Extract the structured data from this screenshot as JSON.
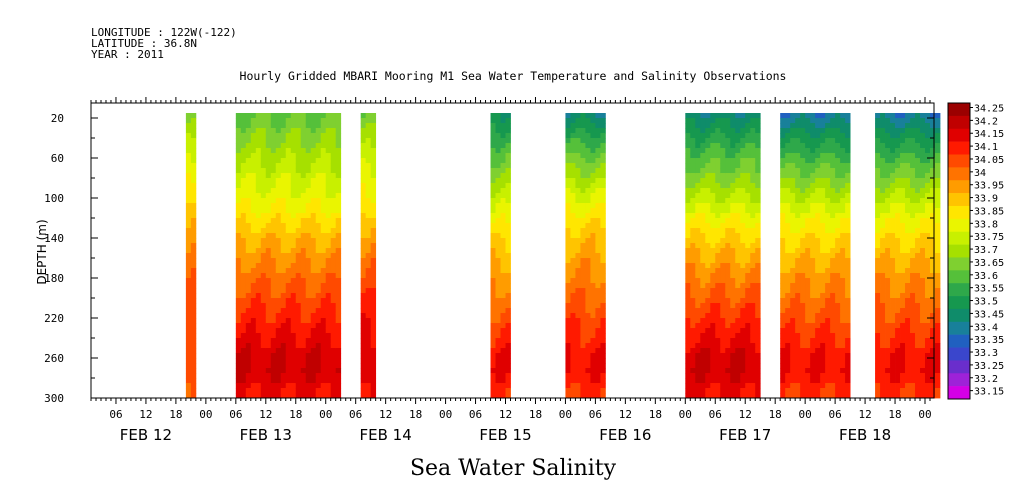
{
  "header": {
    "longitude": "LONGITUDE : 122W(-122)",
    "latitude": "LATITUDE : 36.8N",
    "year": "YEAR : 2011",
    "title": "Hourly Gridded MBARI Mooring M1 Sea Water Temperature and Salinity Observations"
  },
  "chart_data": {
    "type": "heatmap",
    "title": "Hourly Gridded MBARI Mooring M1 Sea Water Temperature and Salinity Observations",
    "xlabel": "",
    "ylabel": "DEPTH (m)",
    "footer_label": "Sea Water Salinity",
    "ylim": [
      300,
      0
    ],
    "y_ticks": [
      20,
      60,
      100,
      140,
      180,
      220,
      260,
      300
    ],
    "x_hour_ticks": [
      "06",
      "12",
      "18",
      "00",
      "06",
      "12",
      "18",
      "00",
      "06",
      "12",
      "18",
      "00",
      "06",
      "12",
      "18",
      "00",
      "06",
      "12",
      "18",
      "00",
      "06",
      "12",
      "18",
      "00",
      "06",
      "12",
      "18",
      "00",
      "06",
      "12",
      "18",
      "00"
    ],
    "x_day_labels": [
      "FEB 12",
      "FEB 13",
      "FEB 14",
      "FEB 15",
      "FEB 16",
      "FEB 17",
      "FEB 18"
    ],
    "colorbar_levels": [
      "34.25",
      "34.2",
      "34.15",
      "34.1",
      "34.05",
      "34",
      "33.95",
      "33.9",
      "33.85",
      "33.8",
      "33.75",
      "33.7",
      "33.65",
      "33.6",
      "33.55",
      "33.5",
      "33.45",
      "33.4",
      "33.35",
      "33.3",
      "33.25",
      "33.2",
      "33.15"
    ],
    "colorbar_colors": [
      "#9b0000",
      "#c00000",
      "#e00000",
      "#ff1a00",
      "#ff4a00",
      "#ff7300",
      "#ff9c00",
      "#ffc400",
      "#ffe600",
      "#eaf500",
      "#c8f000",
      "#a6e000",
      "#7fd030",
      "#55c03a",
      "#2ea84a",
      "#16984f",
      "#0f8c6a",
      "#18809a",
      "#2060c0",
      "#3a46cc",
      "#6a2ecc",
      "#9e22d8",
      "#d400e6"
    ],
    "data_segments": [
      {
        "start": "FEB 12 20:00",
        "end": "FEB 12 22:00",
        "salinity_surface": 33.6,
        "salinity_mid": 33.95,
        "salinity_deep": 34.1
      },
      {
        "start": "FEB 13 06:00",
        "end": "FEB 14 03:00",
        "salinity_surface": 33.6,
        "salinity_mid": 33.85,
        "salinity_deep": 34.2
      },
      {
        "start": "FEB 14 07:00",
        "end": "FEB 14 10:00",
        "salinity_surface": 33.6,
        "salinity_mid": 33.9,
        "salinity_deep": 34.2
      },
      {
        "start": "FEB 15 09:00",
        "end": "FEB 15 13:00",
        "salinity_surface": 33.45,
        "salinity_mid": 33.8,
        "salinity_deep": 34.15
      },
      {
        "start": "FEB 16 00:00",
        "end": "FEB 16 08:00",
        "salinity_surface": 33.4,
        "salinity_mid": 33.85,
        "salinity_deep": 34.15
      },
      {
        "start": "FEB 17 00:00",
        "end": "FEB 17 15:00",
        "salinity_surface": 33.4,
        "salinity_mid": 33.8,
        "salinity_deep": 34.2
      },
      {
        "start": "FEB 17 19:00",
        "end": "FEB 18 09:00",
        "salinity_surface": 33.35,
        "salinity_mid": 33.8,
        "salinity_deep": 34.15
      },
      {
        "start": "FEB 18 14:00",
        "end": "FEB 19 03:00",
        "salinity_surface": 33.35,
        "salinity_mid": 33.8,
        "salinity_deep": 34.15
      }
    ]
  }
}
